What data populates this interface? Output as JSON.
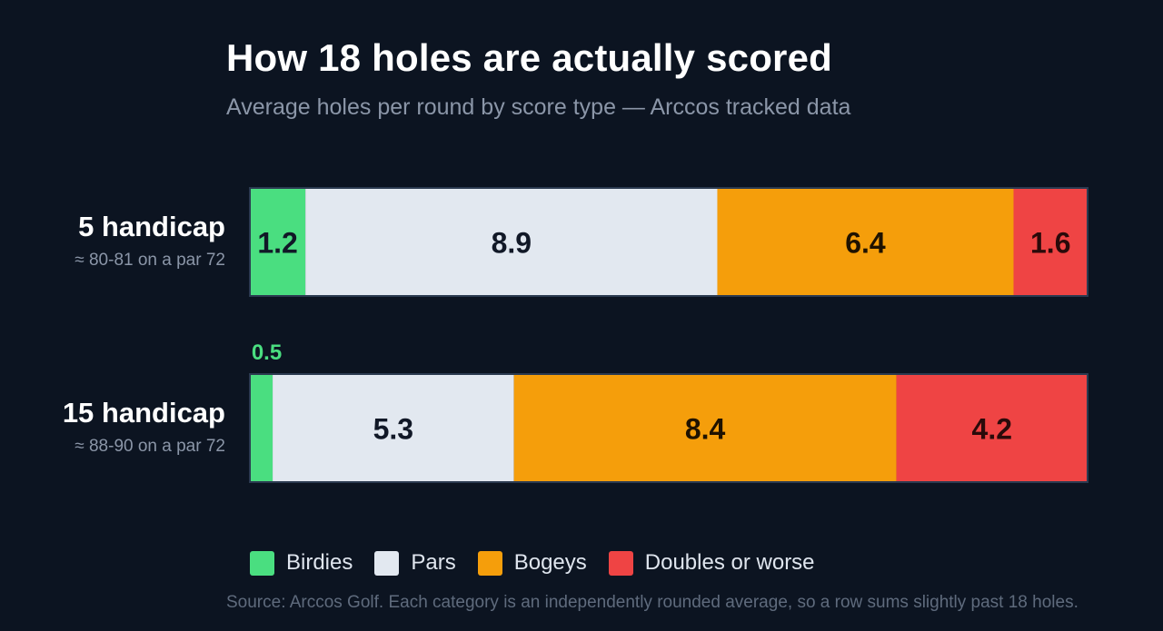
{
  "chart_data": {
    "type": "bar",
    "stacked": true,
    "orientation": "horizontal",
    "title": "How 18 holes are actually scored",
    "subtitle": "Average holes per round by score type — Arccos tracked data",
    "categories": [
      "5 handicap",
      "15 handicap"
    ],
    "category_notes": [
      "≈ 80-81 on a par 72",
      "≈ 88-90 on a par 72"
    ],
    "series": [
      {
        "name": "Birdies",
        "values": [
          1.2,
          0.5
        ],
        "color": "#4ade80",
        "label_color": "#111827",
        "label_color_small": "#4ade80"
      },
      {
        "name": "Pars",
        "values": [
          8.9,
          5.3
        ],
        "color": "#e2e8f0",
        "label_color": "#111827"
      },
      {
        "name": "Bogeys",
        "values": [
          6.4,
          8.4
        ],
        "color": "#f59e0b",
        "label_color": "#1f1200"
      },
      {
        "name": "Doubles or worse",
        "values": [
          1.6,
          4.2
        ],
        "color": "#ef4444",
        "label_color": "#2a0a0a"
      }
    ],
    "legend_position": "bottom",
    "source": "Source: Arccos Golf. Each category is an independently rounded average, so a row sums slightly past 18 holes."
  },
  "colors": {
    "background": "#0c1421",
    "title": "#ffffff",
    "subtitle": "#8b96a8",
    "bar_border": "#2b3a50"
  }
}
